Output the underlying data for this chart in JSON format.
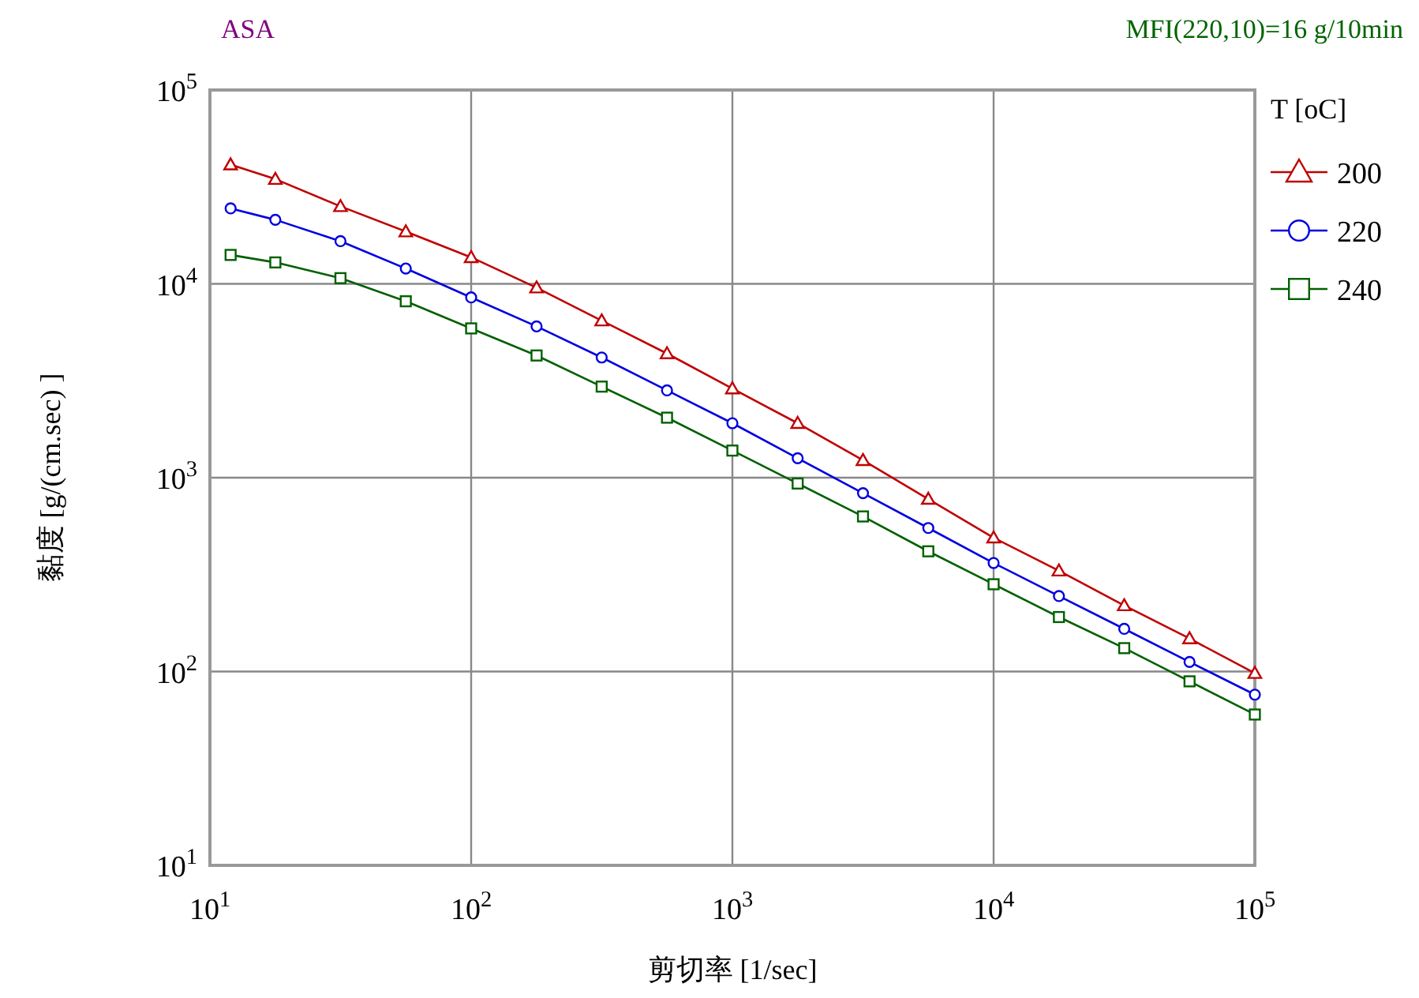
{
  "chart_data": {
    "type": "line",
    "title": "ASA",
    "xlabel": "剪切率 [1/sec]",
    "ylabel": "黏度 [g/(cm.sec) ]",
    "legend_title": "T [oC]",
    "annotations": [
      "MFI(220,10)=16 g/10min"
    ],
    "x": [
      12,
      17.8,
      31.6,
      56.2,
      100,
      178,
      316,
      562,
      1000,
      1778,
      3162,
      5623,
      10000,
      17783,
      31623,
      56234,
      100000
    ],
    "series": [
      {
        "name": "200",
        "color": "#c00000",
        "marker": "triangle",
        "values": [
          41200,
          34700,
          25100,
          18600,
          13700,
          9550,
          6460,
          4370,
          2880,
          1910,
          1230,
          776,
          490,
          331,
          219,
          148,
          98
        ]
      },
      {
        "name": "220",
        "color": "#0000e0",
        "marker": "circle",
        "values": [
          24500,
          21400,
          16600,
          12000,
          8510,
          6030,
          4170,
          2820,
          1910,
          1260,
          832,
          550,
          363,
          245,
          166,
          112,
          76
        ]
      },
      {
        "name": "240",
        "color": "#006000",
        "marker": "square",
        "values": [
          14100,
          12900,
          10700,
          8130,
          5890,
          4270,
          2950,
          2040,
          1380,
          933,
          631,
          417,
          282,
          191,
          132,
          89,
          60
        ]
      }
    ],
    "log": "xy",
    "xlim": [
      10,
      100000
    ],
    "ylim": [
      10,
      100000
    ],
    "xticks": [
      {
        "value": 10,
        "label": "10$^{1}$"
      },
      {
        "value": 100,
        "label": "10$^{2}$"
      },
      {
        "value": 1000,
        "label": "10$^{3}$"
      },
      {
        "value": 10000,
        "label": "10$^{4}$"
      },
      {
        "value": 100000,
        "label": "10$^{5}$"
      }
    ],
    "yticks": [
      {
        "value": 10,
        "label": "10$^{1}$"
      },
      {
        "value": 100,
        "label": "10$^{2}$"
      },
      {
        "value": 1000,
        "label": "10$^{3}$"
      },
      {
        "value": 10000,
        "label": "10$^{4}$"
      },
      {
        "value": 100000,
        "label": "10$^{5}$"
      }
    ],
    "grid": true,
    "legend": "top right"
  }
}
